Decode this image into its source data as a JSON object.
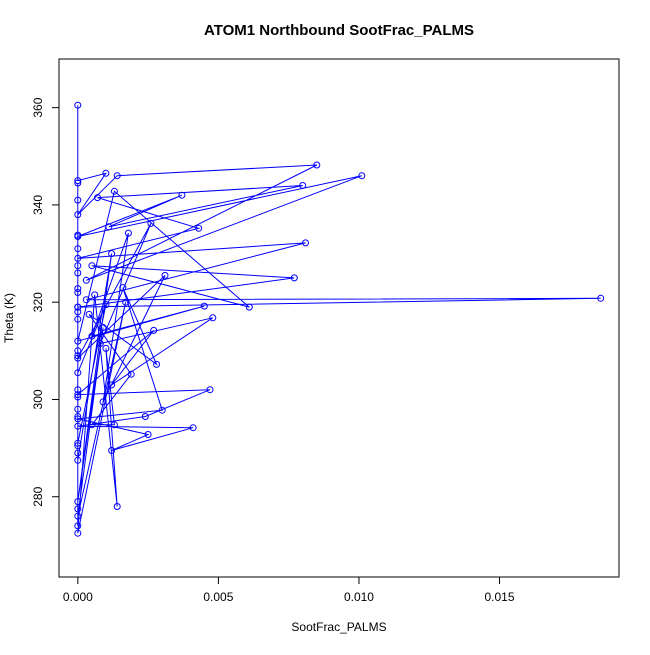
{
  "chart_data": {
    "type": "scatter",
    "title": "ATOM1 Northbound SootFrac_PALMS",
    "xlabel": "SootFrac_PALMS",
    "ylabel": "Theta (K)",
    "xlim": [
      -0.00067,
      0.01925
    ],
    "ylim": [
      263.5,
      370.0
    ],
    "x_ticks": [
      0.0,
      0.005,
      0.01,
      0.015
    ],
    "x_tick_labels": [
      "0.000",
      "0.005",
      "0.010",
      "0.015"
    ],
    "y_ticks": [
      280,
      300,
      320,
      340,
      360
    ],
    "y_tick_labels": [
      "280",
      "300",
      "320",
      "340",
      "360"
    ],
    "grid": false,
    "legend": "none",
    "series": [
      {
        "style": "points connected by lines (type='o')",
        "color": "#0000ff",
        "points": [
          [
            0.0,
            360.5
          ],
          [
            0.0,
            345.0
          ],
          [
            0.001,
            346.5
          ],
          [
            0.0,
            338.0
          ],
          [
            0.0014,
            346.0
          ],
          [
            0.0085,
            348.2
          ],
          [
            0.0003,
            324.5
          ],
          [
            0.0101,
            346.0
          ],
          [
            0.0,
            333.5
          ],
          [
            0.0037,
            342.0
          ],
          [
            0.0011,
            335.5
          ],
          [
            0.008,
            344.0
          ],
          [
            0.0007,
            341.5
          ],
          [
            0.0043,
            335.2
          ],
          [
            0.0,
            329.0
          ],
          [
            0.0081,
            332.2
          ],
          [
            0.0003,
            320.5
          ],
          [
            0.0186,
            320.8
          ],
          [
            0.0,
            319.0
          ],
          [
            0.0077,
            325.0
          ],
          [
            0.0005,
            327.5
          ],
          [
            0.0061,
            319.0
          ],
          [
            0.0013,
            342.8
          ],
          [
            0.0,
            312.0
          ],
          [
            0.0045,
            319.2
          ],
          [
            0.0005,
            313.0
          ],
          [
            0.0018,
            334.2
          ],
          [
            0.0009,
            299.5
          ],
          [
            0.0031,
            325.5
          ],
          [
            0.0,
            308.5
          ],
          [
            0.0026,
            336.2
          ],
          [
            0.0008,
            311.5
          ],
          [
            0.0048,
            316.8
          ],
          [
            0.0012,
            303.0
          ],
          [
            0.0027,
            314.2
          ],
          [
            0.0,
            301.0
          ],
          [
            0.0047,
            302.0
          ],
          [
            0.0024,
            296.5
          ],
          [
            0.0,
            294.5
          ],
          [
            0.0041,
            294.2
          ],
          [
            0.0012,
            289.5
          ],
          [
            0.0025,
            292.8
          ],
          [
            0.0,
            296.0
          ],
          [
            0.003,
            297.8
          ],
          [
            0.0016,
            323.0
          ],
          [
            0.0028,
            307.2
          ],
          [
            0.0004,
            317.5
          ],
          [
            0.0019,
            305.2
          ],
          [
            0.0005,
            294.8
          ],
          [
            0.0013,
            294.8
          ],
          [
            0.001,
            310.5
          ],
          [
            0.0014,
            278.0
          ],
          [
            0.0006,
            321.5
          ],
          [
            0.0,
            272.5
          ],
          [
            0.0017,
            320.0
          ],
          [
            0.0,
            276.0
          ],
          [
            0.0009,
            314.8
          ],
          [
            0.0,
            279.0
          ],
          [
            0.0012,
            330.0
          ],
          [
            0.0,
            287.5
          ],
          [
            0.0,
            322.0
          ],
          [
            0.0,
            291.0
          ],
          [
            0.001,
            319.5
          ],
          [
            0.0,
            305.5
          ],
          [
            0.0,
            277.5
          ],
          [
            0.0,
            341.0
          ],
          [
            0.0,
            326.0
          ],
          [
            0.0,
            331.0
          ],
          [
            0.0,
            333.8
          ],
          [
            0.0,
            316.5
          ],
          [
            0.0,
            310.0
          ],
          [
            0.0,
            300.5
          ],
          [
            0.0,
            298.0
          ],
          [
            0.0,
            289.0
          ],
          [
            0.0,
            274.0
          ],
          [
            0.0,
            296.5
          ],
          [
            0.0,
            319.0
          ],
          [
            0.0,
            322.8
          ],
          [
            0.0,
            309.0
          ],
          [
            0.0,
            290.5
          ],
          [
            0.0,
            344.5
          ],
          [
            0.0,
            302.0
          ],
          [
            0.0,
            327.5
          ],
          [
            0.0,
            318.0
          ]
        ]
      }
    ]
  }
}
